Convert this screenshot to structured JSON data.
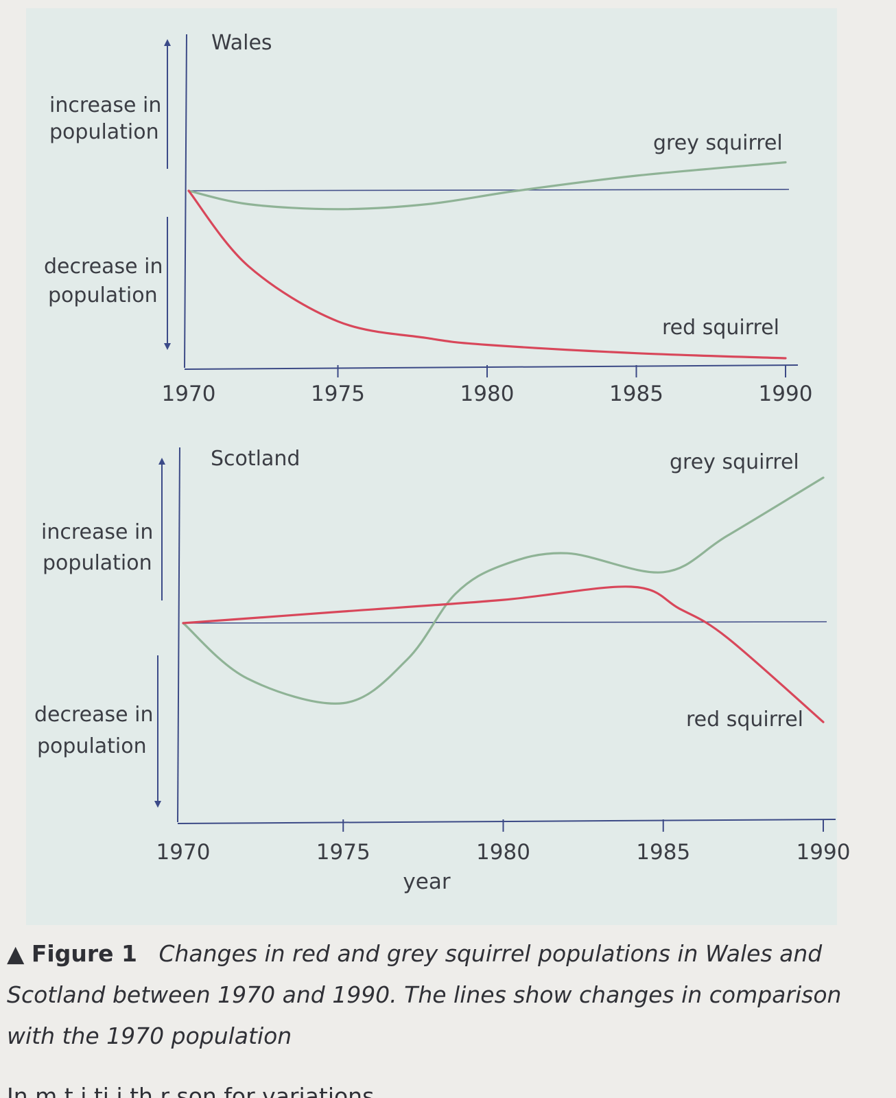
{
  "chart_data": [
    {
      "type": "line",
      "title": "Wales",
      "xlabel": "",
      "x_ticks": [
        "1970",
        "1975",
        "1980",
        "1985",
        "1990"
      ],
      "y_annotations": {
        "up": "increase in population",
        "down": "decrease in population"
      },
      "ylim": [
        -1.0,
        0.5
      ],
      "baseline": 0,
      "series": [
        {
          "name": "grey squirrel",
          "color": "#8fb396",
          "x": [
            1970,
            1972,
            1975,
            1978,
            1981,
            1985,
            1990
          ],
          "y": [
            0,
            -0.08,
            -0.11,
            -0.08,
            0.0,
            0.09,
            0.17
          ]
        },
        {
          "name": "red squirrel",
          "color": "#d8475a",
          "x": [
            1970,
            1972,
            1975,
            1978,
            1980,
            1985,
            1990
          ],
          "y": [
            0,
            -0.45,
            -0.78,
            -0.88,
            -0.92,
            -0.97,
            -1.0
          ]
        }
      ]
    },
    {
      "type": "line",
      "title": "Scotland",
      "xlabel": "year",
      "x_ticks": [
        "1970",
        "1975",
        "1980",
        "1985",
        "1990"
      ],
      "y_annotations": {
        "up": "increase in population",
        "down": "decrease in population"
      },
      "ylim": [
        -1.0,
        1.0
      ],
      "baseline": 0,
      "series": [
        {
          "name": "grey squirrel",
          "color": "#8fb396",
          "x": [
            1970,
            1972,
            1975,
            1977,
            1978.5,
            1980,
            1982,
            1985,
            1987,
            1990
          ],
          "y": [
            0,
            -0.38,
            -0.55,
            -0.25,
            0.2,
            0.4,
            0.48,
            0.35,
            0.6,
            1.0
          ]
        },
        {
          "name": "red squirrel",
          "color": "#d8475a",
          "x": [
            1970,
            1975,
            1980,
            1984,
            1985.5,
            1987,
            1990
          ],
          "y": [
            0,
            0.08,
            0.16,
            0.25,
            0.1,
            -0.1,
            -0.68
          ]
        }
      ]
    }
  ],
  "caption": {
    "marker": "▲",
    "label": "Figure 1",
    "text": "Changes in red and grey squirrel populations in Wales and Scotland between 1970 and 1990. The lines show changes in comparison with the 1970 population"
  },
  "cutoff_text": "In m                                    t              i ti   i  th    r  son for variations"
}
